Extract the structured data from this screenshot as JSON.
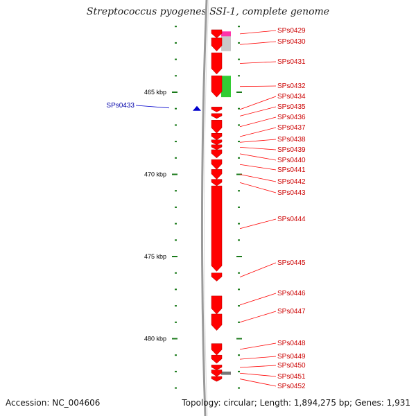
{
  "title": "Streptococcus pyogenes SSI-1, complete genome",
  "footer": {
    "accession": "Accession: NC_004606",
    "info": "Topology: circular; Length: 1,894,275 bp; Genes: 1,931"
  },
  "colors": {
    "gene_fwd": "#ff0000",
    "gene_label_fwd": "#cc0000",
    "gene_label_rev": "#0000aa",
    "tick": "#1a7a1a",
    "backbone": "#9a9a9a"
  },
  "scale": {
    "unit": "kbp",
    "major_ticks": [
      {
        "value": 465,
        "label": "465 kbp"
      },
      {
        "value": 470,
        "label": "470 kbp"
      },
      {
        "value": 475,
        "label": "475 kbp"
      },
      {
        "value": 480,
        "label": "480 kbp"
      }
    ]
  },
  "genes": [
    {
      "name": "SPs0429",
      "start": 461.2,
      "end": 461.7,
      "strand": "+"
    },
    {
      "name": "SPs0430",
      "start": 461.7,
      "end": 462.5,
      "strand": "+"
    },
    {
      "name": "SPs0431",
      "start": 462.6,
      "end": 463.9,
      "strand": "+"
    },
    {
      "name": "SPs0432",
      "start": 464.0,
      "end": 465.3,
      "strand": "+"
    },
    {
      "name": "SPs0433",
      "start": 465.9,
      "end": 466.1,
      "strand": "-"
    },
    {
      "name": "SPs0434",
      "start": 465.9,
      "end": 466.2,
      "strand": "+"
    },
    {
      "name": "SPs0435",
      "start": 466.3,
      "end": 466.6,
      "strand": "+"
    },
    {
      "name": "SPs0436",
      "start": 466.7,
      "end": 467.5,
      "strand": "+"
    },
    {
      "name": "SPs0437",
      "start": 467.5,
      "end": 467.9,
      "strand": "+"
    },
    {
      "name": "SPs0438",
      "start": 467.9,
      "end": 468.2,
      "strand": "+"
    },
    {
      "name": "SPs0439",
      "start": 468.2,
      "end": 468.5,
      "strand": "+"
    },
    {
      "name": "SPs0440",
      "start": 468.5,
      "end": 469.0,
      "strand": "+"
    },
    {
      "name": "SPs0441",
      "start": 469.1,
      "end": 469.7,
      "strand": "+"
    },
    {
      "name": "SPs0442",
      "start": 469.7,
      "end": 470.3,
      "strand": "+"
    },
    {
      "name": "SPs0443",
      "start": 470.3,
      "end": 470.7,
      "strand": "+"
    },
    {
      "name": "SPs0444",
      "start": 470.7,
      "end": 475.9,
      "strand": "+"
    },
    {
      "name": "SPs0445",
      "start": 476.0,
      "end": 476.5,
      "strand": "+"
    },
    {
      "name": "SPs0446",
      "start": 477.4,
      "end": 478.5,
      "strand": "+"
    },
    {
      "name": "SPs0447",
      "start": 478.5,
      "end": 479.5,
      "strand": "+"
    },
    {
      "name": "SPs0448",
      "start": 480.3,
      "end": 481.0,
      "strand": "+"
    },
    {
      "name": "SPs0449",
      "start": 481.0,
      "end": 481.5,
      "strand": "+"
    },
    {
      "name": "SPs0450",
      "start": 481.6,
      "end": 481.9,
      "strand": "+"
    },
    {
      "name": "SPs0451",
      "start": 481.9,
      "end": 482.3,
      "strand": "+"
    },
    {
      "name": "SPs0452",
      "start": 482.3,
      "end": 482.6,
      "strand": "+"
    }
  ],
  "features": [
    {
      "start": 461.3,
      "end": 461.6,
      "color": "#ff33aa"
    },
    {
      "start": 461.6,
      "end": 462.5,
      "color": "#c8c8c8"
    },
    {
      "start": 464.0,
      "end": 465.3,
      "color": "#33cc33"
    },
    {
      "start": 482.0,
      "end": 482.2,
      "color": "#777777"
    }
  ]
}
